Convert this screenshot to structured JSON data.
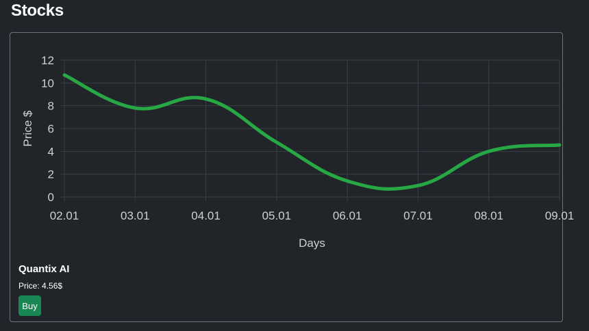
{
  "page": {
    "title": "Stocks"
  },
  "colors": {
    "background": "#212529",
    "line": "#28a745",
    "grid": "#3a3f45",
    "text": "#d0d0d0",
    "button": "#198754"
  },
  "stock": {
    "name": "Quantix AI",
    "price_label": "Price:",
    "price": "4.56$",
    "buy_label": "Buy"
  },
  "chart_data": {
    "type": "line",
    "title": "",
    "xlabel": "Days",
    "ylabel": "Price $",
    "categories": [
      "02.01",
      "03.01",
      "04.01",
      "05.01",
      "06.01",
      "07.01",
      "08.01",
      "09.01"
    ],
    "series": [
      {
        "values": [
          10.7,
          7.8,
          8.6,
          4.8,
          1.4,
          1.0,
          4.0,
          4.56
        ]
      }
    ],
    "ylim": [
      0,
      12
    ],
    "yticks": [
      0,
      2,
      4,
      6,
      8,
      10,
      12
    ],
    "grid": true,
    "smooth": true
  }
}
